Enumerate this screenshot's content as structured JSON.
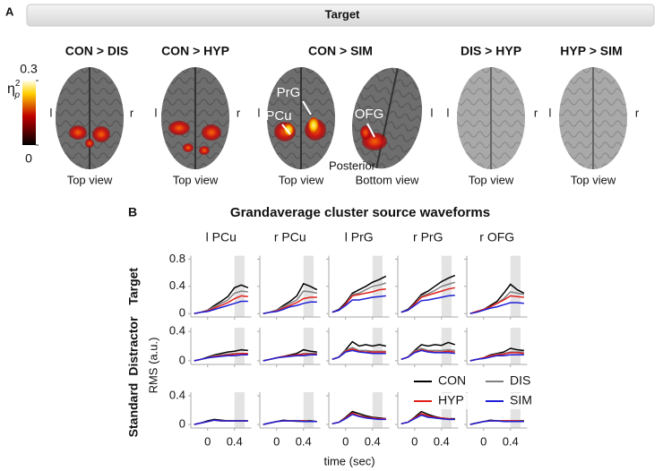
{
  "panel_a": {
    "label": "A",
    "header": "Target",
    "colorbar": {
      "lim": [
        0,
        0.3
      ],
      "ticks": [
        0,
        0.3
      ],
      "label": "η",
      "label_sup": "2",
      "label_sub": "p"
    },
    "orientation": {
      "left": "l",
      "right": "r"
    },
    "contrasts": [
      {
        "title": "CON > DIS",
        "views": [
          "Top view"
        ]
      },
      {
        "title": "CON > HYP",
        "views": [
          "Top view"
        ]
      },
      {
        "title": "CON > SIM",
        "views": [
          "Top view",
          "Bottom view"
        ]
      },
      {
        "title": "DIS > HYP",
        "views": [
          "Top view"
        ]
      },
      {
        "title": "HYP > SIM",
        "views": [
          "Top view"
        ]
      }
    ],
    "annotations": [
      "PrG",
      "PCu",
      "OFG",
      "Posterior"
    ]
  },
  "chart_data": {
    "type": "line",
    "panel_label": "B",
    "title": "Grandaverage cluster source waveforms",
    "xlabel": "time (sec)",
    "ylabel": "RMS (a.u.)",
    "columns": [
      "l PCu",
      "r PCu",
      "l PrG",
      "r PrG",
      "r OFG"
    ],
    "rows": [
      {
        "name": "Target",
        "ylim": [
          -0.05,
          0.85
        ],
        "yticks": [
          0,
          0.4,
          0.8
        ]
      },
      {
        "name": "Distractor",
        "ylim": [
          -0.05,
          0.45
        ],
        "yticks": [
          0,
          0.4
        ]
      },
      {
        "name": "Standard",
        "ylim": [
          -0.05,
          0.45
        ],
        "yticks": [
          0,
          0.4
        ]
      }
    ],
    "x": [
      -0.2,
      -0.1,
      0,
      0.1,
      0.2,
      0.3,
      0.4,
      0.5,
      0.6
    ],
    "xlim": [
      -0.25,
      0.65
    ],
    "xticks": [
      0,
      0.4
    ],
    "shaded_window": [
      0.4,
      0.55
    ],
    "series": [
      {
        "name": "CON",
        "color": "#000000",
        "values": [
          [
            0,
            0.02,
            0.05,
            0.12,
            0.18,
            0.25,
            0.38,
            0.42,
            0.38
          ],
          [
            0,
            0.02,
            0.05,
            0.12,
            0.18,
            0.26,
            0.44,
            0.4,
            0.35
          ],
          [
            0.02,
            0.06,
            0.16,
            0.3,
            0.35,
            0.4,
            0.46,
            0.5,
            0.55
          ],
          [
            0.02,
            0.06,
            0.16,
            0.28,
            0.33,
            0.4,
            0.47,
            0.52,
            0.56
          ],
          [
            0,
            0.03,
            0.06,
            0.12,
            0.18,
            0.3,
            0.43,
            0.35,
            0.3
          ],
          [
            0,
            0.02,
            0.05,
            0.08,
            0.1,
            0.12,
            0.13,
            0.15,
            0.14
          ],
          [
            0,
            0.02,
            0.04,
            0.06,
            0.08,
            0.1,
            0.15,
            0.13,
            0.12
          ],
          [
            0.02,
            0.05,
            0.15,
            0.26,
            0.2,
            0.22,
            0.2,
            0.22,
            0.2
          ],
          [
            0.02,
            0.05,
            0.14,
            0.22,
            0.2,
            0.22,
            0.21,
            0.25,
            0.22
          ],
          [
            0,
            0.02,
            0.04,
            0.08,
            0.1,
            0.12,
            0.17,
            0.15,
            0.14
          ],
          [
            0,
            0.02,
            0.05,
            0.07,
            0.06,
            0.05,
            0.05,
            0.05,
            0.05
          ],
          [
            0,
            0.02,
            0.04,
            0.06,
            0.05,
            0.05,
            0.05,
            0.05,
            0.04
          ],
          [
            0.01,
            0.03,
            0.1,
            0.18,
            0.15,
            0.12,
            0.1,
            0.09,
            0.08
          ],
          [
            0.01,
            0.03,
            0.1,
            0.18,
            0.14,
            0.11,
            0.09,
            0.08,
            0.08
          ],
          [
            0,
            0.02,
            0.04,
            0.06,
            0.05,
            0.05,
            0.05,
            0.05,
            0.05
          ]
        ]
      },
      {
        "name": "DIS",
        "color": "#808080",
        "values": [
          [
            0,
            0.02,
            0.05,
            0.1,
            0.15,
            0.2,
            0.3,
            0.33,
            0.32
          ],
          [
            0,
            0.02,
            0.05,
            0.1,
            0.15,
            0.2,
            0.33,
            0.32,
            0.3
          ],
          [
            0.02,
            0.05,
            0.14,
            0.28,
            0.3,
            0.35,
            0.4,
            0.42,
            0.45
          ],
          [
            0.02,
            0.05,
            0.14,
            0.26,
            0.29,
            0.34,
            0.4,
            0.43,
            0.46
          ],
          [
            0,
            0.03,
            0.06,
            0.1,
            0.15,
            0.22,
            0.32,
            0.3,
            0.28
          ],
          [
            0,
            0.02,
            0.04,
            0.07,
            0.08,
            0.09,
            0.1,
            0.1,
            0.1
          ],
          [
            0,
            0.02,
            0.04,
            0.06,
            0.07,
            0.08,
            0.1,
            0.1,
            0.1
          ],
          [
            0.02,
            0.05,
            0.14,
            0.18,
            0.14,
            0.14,
            0.13,
            0.13,
            0.13
          ],
          [
            0.02,
            0.05,
            0.13,
            0.17,
            0.14,
            0.14,
            0.14,
            0.15,
            0.14
          ],
          [
            0,
            0.02,
            0.04,
            0.07,
            0.09,
            0.1,
            0.12,
            0.12,
            0.12
          ],
          [
            0,
            0.02,
            0.04,
            0.06,
            0.05,
            0.05,
            0.05,
            0.05,
            0.05
          ],
          [
            0,
            0.02,
            0.04,
            0.05,
            0.05,
            0.04,
            0.04,
            0.04,
            0.04
          ],
          [
            0.01,
            0.03,
            0.09,
            0.15,
            0.12,
            0.1,
            0.09,
            0.08,
            0.07
          ],
          [
            0.01,
            0.03,
            0.09,
            0.14,
            0.11,
            0.09,
            0.08,
            0.07,
            0.07
          ],
          [
            0,
            0.02,
            0.04,
            0.05,
            0.05,
            0.05,
            0.04,
            0.04,
            0.04
          ]
        ]
      },
      {
        "name": "HYP",
        "color": "#e0201b",
        "values": [
          [
            0,
            0.02,
            0.04,
            0.08,
            0.12,
            0.16,
            0.22,
            0.26,
            0.25
          ],
          [
            0,
            0.02,
            0.04,
            0.08,
            0.12,
            0.16,
            0.22,
            0.24,
            0.24
          ],
          [
            0.02,
            0.05,
            0.14,
            0.26,
            0.28,
            0.3,
            0.32,
            0.35,
            0.36
          ],
          [
            0.02,
            0.05,
            0.14,
            0.24,
            0.27,
            0.3,
            0.33,
            0.36,
            0.38
          ],
          [
            0,
            0.03,
            0.06,
            0.1,
            0.15,
            0.2,
            0.26,
            0.25,
            0.24
          ],
          [
            0,
            0.02,
            0.04,
            0.06,
            0.07,
            0.08,
            0.09,
            0.1,
            0.1
          ],
          [
            0,
            0.02,
            0.04,
            0.06,
            0.07,
            0.08,
            0.09,
            0.09,
            0.09
          ],
          [
            0.02,
            0.05,
            0.13,
            0.16,
            0.13,
            0.12,
            0.12,
            0.12,
            0.12
          ],
          [
            0.02,
            0.05,
            0.12,
            0.15,
            0.13,
            0.12,
            0.12,
            0.13,
            0.12
          ],
          [
            0,
            0.02,
            0.04,
            0.07,
            0.08,
            0.09,
            0.11,
            0.11,
            0.1
          ],
          [
            0,
            0.02,
            0.04,
            0.06,
            0.05,
            0.05,
            0.05,
            0.05,
            0.05
          ],
          [
            0,
            0.02,
            0.04,
            0.05,
            0.05,
            0.05,
            0.05,
            0.04,
            0.04
          ],
          [
            0.01,
            0.03,
            0.09,
            0.16,
            0.12,
            0.1,
            0.09,
            0.08,
            0.08
          ],
          [
            0.01,
            0.03,
            0.09,
            0.15,
            0.12,
            0.1,
            0.09,
            0.08,
            0.07
          ],
          [
            0,
            0.02,
            0.04,
            0.05,
            0.05,
            0.05,
            0.05,
            0.05,
            0.04
          ]
        ]
      },
      {
        "name": "SIM",
        "color": "#1f1fd6",
        "values": [
          [
            0,
            0.02,
            0.03,
            0.06,
            0.09,
            0.12,
            0.15,
            0.18,
            0.18
          ],
          [
            0,
            0.02,
            0.03,
            0.06,
            0.1,
            0.12,
            0.15,
            0.17,
            0.17
          ],
          [
            0.02,
            0.05,
            0.12,
            0.2,
            0.2,
            0.22,
            0.24,
            0.25,
            0.26
          ],
          [
            0.02,
            0.05,
            0.12,
            0.19,
            0.2,
            0.22,
            0.24,
            0.26,
            0.27
          ],
          [
            0,
            0.02,
            0.05,
            0.08,
            0.1,
            0.13,
            0.16,
            0.16,
            0.15
          ],
          [
            0,
            0.02,
            0.04,
            0.05,
            0.06,
            0.07,
            0.07,
            0.08,
            0.08
          ],
          [
            0,
            0.02,
            0.04,
            0.05,
            0.06,
            0.07,
            0.07,
            0.08,
            0.08
          ],
          [
            0.02,
            0.05,
            0.12,
            0.14,
            0.12,
            0.11,
            0.1,
            0.1,
            0.1
          ],
          [
            0.02,
            0.05,
            0.11,
            0.14,
            0.12,
            0.11,
            0.11,
            0.11,
            0.1
          ],
          [
            0,
            0.02,
            0.03,
            0.05,
            0.07,
            0.07,
            0.08,
            0.08,
            0.08
          ],
          [
            0,
            0.02,
            0.04,
            0.06,
            0.05,
            0.05,
            0.05,
            0.05,
            0.05
          ],
          [
            0,
            0.02,
            0.04,
            0.05,
            0.05,
            0.05,
            0.04,
            0.04,
            0.04
          ],
          [
            0.01,
            0.03,
            0.08,
            0.14,
            0.11,
            0.09,
            0.08,
            0.07,
            0.07
          ],
          [
            0.01,
            0.03,
            0.08,
            0.13,
            0.1,
            0.09,
            0.08,
            0.07,
            0.07
          ],
          [
            0,
            0.02,
            0.04,
            0.05,
            0.05,
            0.04,
            0.04,
            0.04,
            0.04
          ]
        ]
      }
    ]
  }
}
